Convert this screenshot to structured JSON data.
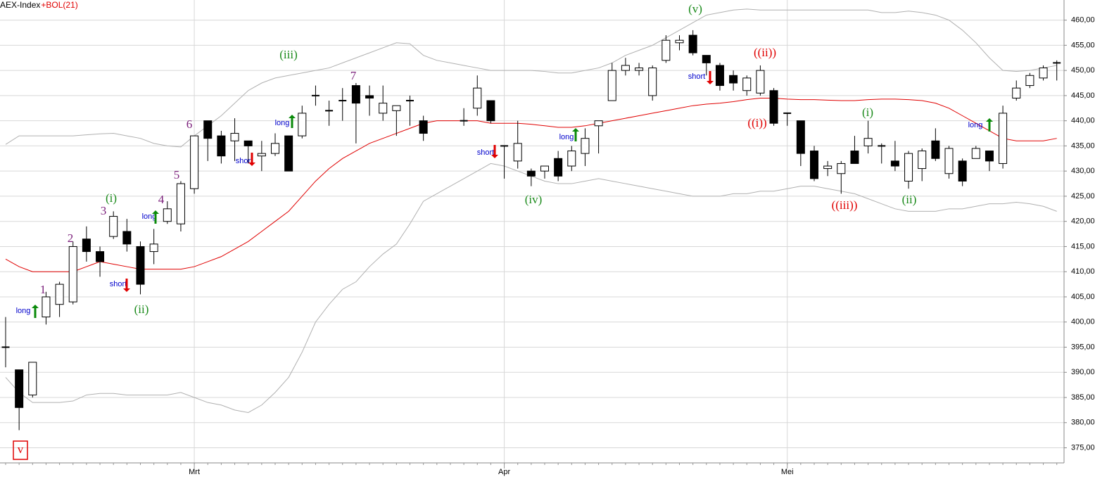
{
  "chart_data": {
    "type": "candlestick",
    "title": "AEX-Index",
    "indicator": "+BOL(21)",
    "categories": [
      null,
      null,
      null,
      null,
      null,
      null,
      null,
      null,
      null,
      null,
      null,
      null,
      null,
      null,
      "Mrt",
      null,
      null,
      null,
      null,
      null,
      null,
      null,
      null,
      null,
      null,
      null,
      null,
      null,
      null,
      null,
      null,
      null,
      null,
      null,
      null,
      null,
      null,
      "Apr",
      null,
      null,
      null,
      null,
      null,
      null,
      null,
      null,
      null,
      null,
      null,
      null,
      null,
      null,
      null,
      null,
      null,
      null,
      null,
      null,
      "Mei",
      null,
      null,
      null,
      null,
      null,
      null,
      null,
      null,
      null,
      null,
      null,
      null,
      null,
      null,
      null,
      null,
      null,
      null,
      null,
      null
    ],
    "open": [
      395,
      390.5,
      385.5,
      401,
      403.5,
      404,
      416.5,
      414,
      417,
      418,
      415,
      414,
      420,
      419.5,
      426.5,
      440,
      437,
      436,
      436,
      433,
      433.5,
      437,
      437,
      445,
      442,
      444,
      447,
      445,
      441.5,
      442,
      444,
      440,
      null,
      null,
      440,
      442.5,
      444,
      435,
      432,
      430,
      430,
      432.5,
      431,
      433.5,
      439,
      444,
      450,
      450,
      445,
      452,
      455.5,
      457,
      453,
      451,
      449,
      446,
      445.5,
      446,
      441.5,
      440,
      434,
      430.5,
      429.5,
      434,
      435,
      435,
      432,
      428,
      430.5,
      436,
      429.5,
      432,
      432.5,
      434,
      431.5,
      444.5,
      447,
      448.5,
      451.5
    ],
    "high": [
      401,
      390.5,
      392,
      406,
      408,
      416,
      419,
      415,
      422,
      420.5,
      416,
      418.5,
      424,
      428,
      437,
      440,
      438,
      440.5,
      436,
      436,
      437.5,
      437,
      443,
      447,
      444,
      446.5,
      447.5,
      447,
      447,
      443,
      445,
      441,
      null,
      null,
      442.5,
      449,
      444,
      435,
      440,
      430.5,
      431,
      434,
      435,
      438.5,
      440,
      451.5,
      452.5,
      451.5,
      451,
      457,
      457,
      458,
      453,
      451.5,
      450,
      449,
      451,
      446.5,
      441.5,
      440,
      435,
      432,
      432,
      437,
      440,
      435.5,
      436,
      434,
      434.5,
      438.5,
      435,
      432.5,
      435,
      434,
      443,
      448,
      449.5,
      451,
      452
    ],
    "low": [
      391,
      378.5,
      385,
      399.5,
      401,
      403.5,
      412,
      409,
      416.5,
      414,
      405.5,
      411.5,
      419.5,
      418,
      425.5,
      432,
      431.5,
      432,
      431.5,
      430,
      433,
      430,
      436.5,
      443,
      439,
      440,
      435.5,
      441,
      440,
      437,
      439,
      436,
      null,
      null,
      439,
      441,
      439.5,
      428.5,
      430.5,
      427,
      428.5,
      428,
      430,
      431,
      433.5,
      444,
      449,
      449,
      444,
      451.5,
      454,
      453,
      449,
      446,
      446,
      445,
      445,
      439,
      439,
      431,
      428,
      429,
      425.5,
      431.5,
      433.5,
      431.5,
      430,
      426.5,
      428,
      432,
      428.5,
      427,
      432.5,
      430,
      430.5,
      444,
      446.5,
      448,
      448
    ],
    "close": [
      395,
      383,
      392,
      405,
      407.5,
      415,
      414,
      412,
      421,
      415.5,
      407.5,
      415.5,
      422.5,
      427.5,
      437,
      436.5,
      433,
      437.5,
      435,
      433.5,
      435.5,
      430,
      441.5,
      445,
      442,
      444,
      443.5,
      444.5,
      443.5,
      443,
      444,
      437.5,
      null,
      null,
      440,
      446.5,
      440,
      435,
      435.5,
      429,
      431,
      429,
      434,
      436.5,
      440,
      450,
      451,
      450.5,
      450.5,
      456,
      456,
      453.5,
      451.5,
      447,
      447.5,
      448.5,
      450,
      439.5,
      441.5,
      433.5,
      428.5,
      431,
      431.5,
      431.5,
      436.5,
      435,
      431,
      433.5,
      434,
      432.5,
      434.5,
      428,
      434.5,
      432,
      441.5,
      446.5,
      449,
      450.5,
      451.5
    ],
    "lines": [
      {
        "color": "#e00000",
        "values": [
          412.5,
          411,
          410,
          410,
          410,
          410,
          411,
          412,
          411.5,
          411,
          410.5,
          410.5,
          410.5,
          410.5,
          411,
          412,
          413,
          414.5,
          416,
          418,
          420,
          422,
          425,
          428,
          430.5,
          432.5,
          434,
          435.5,
          436.5,
          437.5,
          438.5,
          439.5,
          440,
          440,
          440,
          440,
          439.5,
          439.5,
          439.5,
          439.3,
          439,
          438.7,
          438.7,
          439,
          439.5,
          440,
          440.5,
          441,
          441.5,
          442,
          442.5,
          443,
          443.3,
          443.5,
          443.8,
          444.2,
          444.5,
          444.5,
          444.3,
          444.2,
          444.2,
          444.1,
          444,
          444,
          444.2,
          444.3,
          444.3,
          444.2,
          444,
          443.5,
          442.5,
          441,
          439.5,
          438,
          436.5,
          436,
          436,
          436,
          436.5
        ]
      },
      {
        "color": "#b0b0b0",
        "values": [
          435.3,
          437,
          437,
          437,
          437,
          437,
          437.2,
          437.4,
          437.5,
          437,
          436.5,
          435.5,
          435,
          434.8,
          437,
          439,
          441,
          443.5,
          446,
          447.5,
          448.5,
          449,
          449.5,
          450,
          450.5,
          451.5,
          452.5,
          453.5,
          454.5,
          455.5,
          455.3,
          453,
          452,
          451.5,
          451,
          450.5,
          450,
          450,
          450,
          450,
          449.8,
          449.5,
          449.5,
          450,
          450.5,
          451.5,
          453,
          454,
          455,
          456.5,
          458,
          459.5,
          461,
          461.5,
          462,
          462.2,
          462,
          462,
          462,
          462,
          462,
          462,
          462,
          462,
          462,
          461.5,
          461.5,
          461.8,
          461.5,
          461,
          460,
          458,
          455.5,
          452.5,
          450,
          449.8,
          450,
          450.5,
          451
        ]
      },
      {
        "color": "#b0b0b0",
        "values": [
          389,
          386,
          384,
          384,
          384,
          384.3,
          385.5,
          385.8,
          385.8,
          385.5,
          385.5,
          385.5,
          385.5,
          386,
          385,
          384,
          383.5,
          382.5,
          382,
          383.5,
          386,
          389,
          394,
          400,
          403.5,
          406.5,
          408,
          411,
          413.5,
          415.5,
          419.5,
          424,
          425.5,
          427,
          428.5,
          430,
          431.5,
          431,
          430,
          429,
          428,
          427.5,
          427.5,
          428,
          428.5,
          428,
          427.5,
          427,
          426.5,
          426,
          425.5,
          425,
          425,
          425,
          425.5,
          425.5,
          426,
          426,
          426.5,
          427,
          427,
          426.5,
          426,
          425.5,
          424.5,
          423.5,
          422.5,
          422,
          422,
          422,
          422.5,
          422.5,
          423,
          423.5,
          423.5,
          423.8,
          423.5,
          423,
          422
        ]
      }
    ],
    "ylim": [
      372,
      464
    ],
    "yticks": [
      {
        "value": 375,
        "label": "375,00"
      },
      {
        "value": 380,
        "label": "380,00"
      },
      {
        "value": 385,
        "label": "385,00"
      },
      {
        "value": 390,
        "label": "390,00"
      },
      {
        "value": 395,
        "label": "395,00"
      },
      {
        "value": 400,
        "label": "400,00"
      },
      {
        "value": 405,
        "label": "405,00"
      },
      {
        "value": 410,
        "label": "410,00"
      },
      {
        "value": 415,
        "label": "415,00"
      },
      {
        "value": 420,
        "label": "420,00"
      },
      {
        "value": 425,
        "label": "425,00"
      },
      {
        "value": 430,
        "label": "430,00"
      },
      {
        "value": 435,
        "label": "435,00"
      },
      {
        "value": 440,
        "label": "440,00"
      },
      {
        "value": 445,
        "label": "445,00"
      },
      {
        "value": 450,
        "label": "450,00"
      },
      {
        "value": 455,
        "label": "455,00"
      },
      {
        "value": 460,
        "label": "460,00"
      }
    ],
    "grid": true,
    "annotations": [
      {
        "text": "v",
        "color": "#e00000"
      },
      {
        "text": "1",
        "color": "#7b1f7b"
      },
      {
        "text": "2",
        "color": "#7b1f7b"
      },
      {
        "text": "3",
        "color": "#7b1f7b"
      },
      {
        "text": "4",
        "color": "#7b1f7b"
      },
      {
        "text": "5",
        "color": "#7b1f7b"
      },
      {
        "text": "6",
        "color": "#7b1f7b"
      },
      {
        "text": "7",
        "color": "#7b1f7b"
      },
      {
        "text": "(i)",
        "color": "#1a8a1a"
      },
      {
        "text": "(ii)",
        "color": "#1a8a1a"
      },
      {
        "text": "(iii)",
        "color": "#1a8a1a"
      },
      {
        "text": "(iv)",
        "color": "#1a8a1a"
      },
      {
        "text": "(v)",
        "color": "#1a8a1a"
      },
      {
        "text": "((ii))",
        "color": "#e00000"
      },
      {
        "text": "((i))",
        "color": "#e00000"
      },
      {
        "text": "((iii))",
        "color": "#e00000"
      },
      {
        "text": "(i)",
        "color": "#1a8a1a"
      },
      {
        "text": "(ii)",
        "color": "#1a8a1a"
      },
      {
        "text": "long",
        "color": "#0000cc"
      },
      {
        "text": "long",
        "color": "#0000cc"
      },
      {
        "text": "short",
        "color": "#0000cc"
      },
      {
        "text": "short",
        "color": "#0000cc"
      },
      {
        "text": "long",
        "color": "#0000cc"
      },
      {
        "text": "short",
        "color": "#0000cc"
      },
      {
        "text": "long",
        "color": "#0000cc"
      },
      {
        "text": "short",
        "color": "#0000cc"
      },
      {
        "text": "long",
        "color": "#0000cc"
      }
    ]
  }
}
